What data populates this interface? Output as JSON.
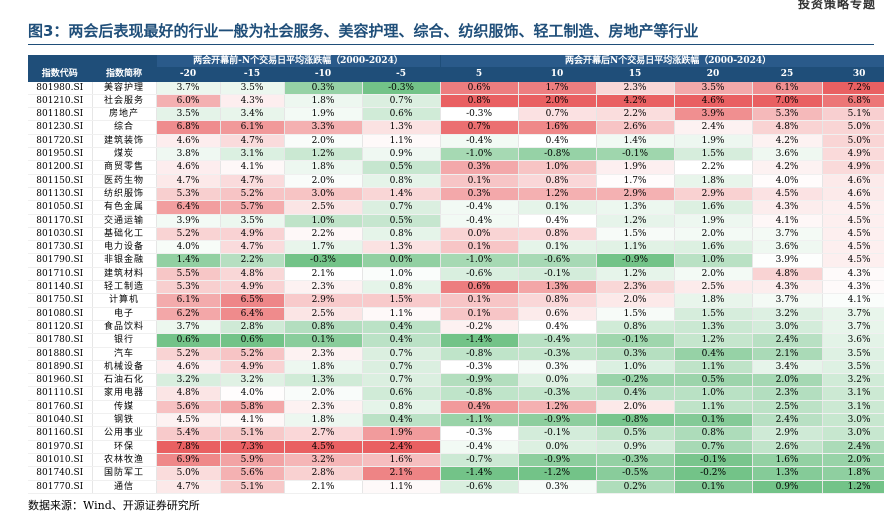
{
  "header_right": "投资策略专题",
  "title": "图3：两会后表现最好的行业一般为社会服务、美容护理、综合、纺织服饰、轻工制造、房地产等行业",
  "table": {
    "group_before": "两会开幕前-N个交易日平均涨跌幅（2000-2024）",
    "group_after": "两会开幕后N个交易日平均涨跌幅（2000-2024）",
    "col_code": "指数代码",
    "col_name": "指数简称",
    "before_cols": [
      "-20",
      "-15",
      "-10",
      "-5"
    ],
    "after_cols": [
      "5",
      "10",
      "15",
      "20",
      "25",
      "30"
    ],
    "rows": [
      {
        "code": "801980.SI",
        "name": "美容护理",
        "v": [
          "3.7%",
          "3.5%",
          "0.3%",
          "-0.3%",
          "0.6%",
          "1.7%",
          "2.3%",
          "3.5%",
          "6.1%",
          "7.2%"
        ]
      },
      {
        "code": "801210.SI",
        "name": "社会服务",
        "v": [
          "6.0%",
          "4.3%",
          "1.8%",
          "0.7%",
          "0.8%",
          "2.0%",
          "4.2%",
          "4.6%",
          "7.0%",
          "6.8%"
        ]
      },
      {
        "code": "801180.SI",
        "name": "房地产",
        "v": [
          "3.5%",
          "3.4%",
          "1.9%",
          "0.6%",
          "-0.3%",
          "0.7%",
          "2.2%",
          "3.9%",
          "5.3%",
          "5.1%"
        ]
      },
      {
        "code": "801230.SI",
        "name": "综合",
        "v": [
          "6.8%",
          "6.1%",
          "3.3%",
          "1.3%",
          "0.7%",
          "1.6%",
          "2.6%",
          "2.4%",
          "4.8%",
          "5.0%"
        ]
      },
      {
        "code": "801720.SI",
        "name": "建筑装饰",
        "v": [
          "4.6%",
          "4.7%",
          "2.0%",
          "1.1%",
          "-0.4%",
          "0.4%",
          "1.4%",
          "1.9%",
          "4.2%",
          "5.0%"
        ]
      },
      {
        "code": "801950.SI",
        "name": "煤炭",
        "v": [
          "3.8%",
          "3.1%",
          "1.2%",
          "0.9%",
          "-1.0%",
          "-0.8%",
          "-0.1%",
          "1.5%",
          "3.6%",
          "4.9%"
        ]
      },
      {
        "code": "801200.SI",
        "name": "商贸零售",
        "v": [
          "4.6%",
          "4.1%",
          "1.8%",
          "0.5%",
          "0.3%",
          "1.0%",
          "1.9%",
          "2.2%",
          "4.2%",
          "4.9%"
        ]
      },
      {
        "code": "801150.SI",
        "name": "医药生物",
        "v": [
          "4.7%",
          "4.7%",
          "2.0%",
          "0.8%",
          "0.1%",
          "0.8%",
          "1.7%",
          "1.8%",
          "4.0%",
          "4.6%"
        ]
      },
      {
        "code": "801130.SI",
        "name": "纺织服饰",
        "v": [
          "5.3%",
          "5.2%",
          "3.0%",
          "1.4%",
          "0.3%",
          "1.2%",
          "2.9%",
          "2.9%",
          "4.5%",
          "4.6%"
        ]
      },
      {
        "code": "801050.SI",
        "name": "有色金属",
        "v": [
          "6.4%",
          "5.7%",
          "2.5%",
          "0.7%",
          "-0.4%",
          "0.1%",
          "1.3%",
          "1.6%",
          "4.3%",
          "4.5%"
        ]
      },
      {
        "code": "801170.SI",
        "name": "交通运输",
        "v": [
          "3.9%",
          "3.5%",
          "1.0%",
          "0.5%",
          "-0.4%",
          "0.4%",
          "1.2%",
          "1.9%",
          "4.1%",
          "4.5%"
        ]
      },
      {
        "code": "801030.SI",
        "name": "基础化工",
        "v": [
          "5.2%",
          "4.9%",
          "2.2%",
          "0.8%",
          "0.0%",
          "0.8%",
          "1.5%",
          "2.0%",
          "3.7%",
          "4.5%"
        ]
      },
      {
        "code": "801730.SI",
        "name": "电力设备",
        "v": [
          "4.0%",
          "4.7%",
          "1.7%",
          "1.3%",
          "0.1%",
          "0.1%",
          "1.1%",
          "1.6%",
          "3.6%",
          "4.5%"
        ]
      },
      {
        "code": "801790.SI",
        "name": "非银金融",
        "v": [
          "1.4%",
          "2.2%",
          "-0.3%",
          "0.0%",
          "-1.0%",
          "-0.6%",
          "-0.9%",
          "1.0%",
          "3.9%",
          "4.5%"
        ]
      },
      {
        "code": "801710.SI",
        "name": "建筑材料",
        "v": [
          "5.5%",
          "4.8%",
          "2.1%",
          "1.0%",
          "-0.6%",
          "-0.1%",
          "1.2%",
          "2.0%",
          "4.8%",
          "4.3%"
        ]
      },
      {
        "code": "801140.SI",
        "name": "轻工制造",
        "v": [
          "5.3%",
          "4.9%",
          "2.3%",
          "0.8%",
          "0.6%",
          "1.3%",
          "2.3%",
          "2.5%",
          "4.3%",
          "4.3%"
        ]
      },
      {
        "code": "801750.SI",
        "name": "计算机",
        "v": [
          "6.1%",
          "6.5%",
          "2.9%",
          "1.5%",
          "0.1%",
          "0.8%",
          "2.0%",
          "1.8%",
          "3.7%",
          "4.1%"
        ]
      },
      {
        "code": "801080.SI",
        "name": "电子",
        "v": [
          "6.2%",
          "6.4%",
          "2.5%",
          "1.1%",
          "0.1%",
          "0.6%",
          "1.5%",
          "1.5%",
          "3.2%",
          "3.7%"
        ]
      },
      {
        "code": "801120.SI",
        "name": "食品饮料",
        "v": [
          "3.7%",
          "2.8%",
          "0.8%",
          "0.4%",
          "-0.2%",
          "0.4%",
          "0.8%",
          "1.3%",
          "3.0%",
          "3.7%"
        ]
      },
      {
        "code": "801780.SI",
        "name": "银行",
        "v": [
          "0.6%",
          "0.6%",
          "0.1%",
          "0.4%",
          "-1.4%",
          "-0.4%",
          "-0.1%",
          "1.2%",
          "2.4%",
          "3.6%"
        ]
      },
      {
        "code": "801880.SI",
        "name": "汽车",
        "v": [
          "5.2%",
          "5.2%",
          "2.3%",
          "0.7%",
          "-0.8%",
          "-0.3%",
          "0.3%",
          "0.4%",
          "2.1%",
          "3.5%"
        ]
      },
      {
        "code": "801890.SI",
        "name": "机械设备",
        "v": [
          "4.6%",
          "4.9%",
          "1.8%",
          "0.7%",
          "-0.3%",
          "0.3%",
          "1.0%",
          "1.1%",
          "3.4%",
          "3.5%"
        ]
      },
      {
        "code": "801960.SI",
        "name": "石油石化",
        "v": [
          "3.2%",
          "3.2%",
          "1.3%",
          "0.7%",
          "-0.9%",
          "0.0%",
          "-0.2%",
          "0.5%",
          "2.0%",
          "3.2%"
        ]
      },
      {
        "code": "801110.SI",
        "name": "家用电器",
        "v": [
          "4.8%",
          "4.0%",
          "2.0%",
          "0.6%",
          "-0.8%",
          "-0.3%",
          "0.4%",
          "1.0%",
          "2.3%",
          "3.1%"
        ]
      },
      {
        "code": "801760.SI",
        "name": "传媒",
        "v": [
          "5.6%",
          "5.8%",
          "2.3%",
          "0.8%",
          "0.4%",
          "1.2%",
          "2.0%",
          "1.1%",
          "2.5%",
          "3.1%"
        ]
      },
      {
        "code": "801040.SI",
        "name": "钢铁",
        "v": [
          "4.5%",
          "4.1%",
          "1.8%",
          "0.4%",
          "-1.1%",
          "-0.9%",
          "-0.8%",
          "0.1%",
          "2.4%",
          "3.0%"
        ]
      },
      {
        "code": "801160.SI",
        "name": "公用事业",
        "v": [
          "5.4%",
          "5.1%",
          "2.7%",
          "1.9%",
          "-0.3%",
          "-0.1%",
          "0.5%",
          "0.8%",
          "2.9%",
          "3.0%"
        ]
      },
      {
        "code": "801970.SI",
        "name": "环保",
        "v": [
          "7.8%",
          "7.3%",
          "4.5%",
          "2.4%",
          "-0.4%",
          "0.0%",
          "0.9%",
          "0.7%",
          "2.6%",
          "2.4%"
        ]
      },
      {
        "code": "801010.SI",
        "name": "农林牧渔",
        "v": [
          "6.9%",
          "5.9%",
          "3.2%",
          "1.6%",
          "-0.7%",
          "-0.9%",
          "-0.3%",
          "-0.1%",
          "1.6%",
          "2.0%"
        ]
      },
      {
        "code": "801740.SI",
        "name": "国防军工",
        "v": [
          "5.0%",
          "5.6%",
          "2.8%",
          "2.1%",
          "-1.4%",
          "-1.2%",
          "-0.5%",
          "-0.2%",
          "1.3%",
          "1.8%"
        ]
      },
      {
        "code": "801770.SI",
        "name": "通信",
        "v": [
          "4.7%",
          "5.1%",
          "2.1%",
          "1.1%",
          "-0.6%",
          "0.3%",
          "0.2%",
          "0.1%",
          "0.9%",
          "1.2%"
        ]
      }
    ]
  },
  "source": "数据来源：Wind、开源证券研究所",
  "colors": {
    "header_bg": "#1f4e79",
    "high": "#e8585a",
    "mid": "#ffffff",
    "low": "#5ab873"
  }
}
